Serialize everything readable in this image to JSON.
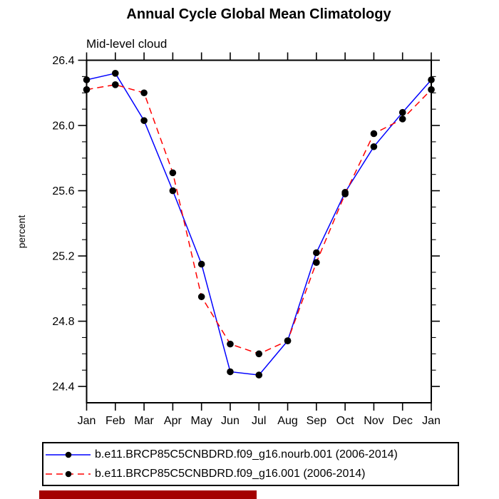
{
  "figure": {
    "title": "Annual Cycle Global Mean Climatology",
    "subtitle": "Mid-level cloud"
  },
  "chart_data": {
    "type": "line",
    "title": "Annual Cycle Global Mean Climatology",
    "subtitle": "Mid-level cloud",
    "xlabel": "",
    "ylabel": "percent",
    "categories": [
      "Jan",
      "Feb",
      "Mar",
      "Apr",
      "May",
      "Jun",
      "Jul",
      "Aug",
      "Sep",
      "Oct",
      "Nov",
      "Dec",
      "Jan"
    ],
    "ylim": [
      24.3,
      26.4
    ],
    "yticks_major": [
      26.4,
      26.0,
      25.6,
      25.2,
      24.8,
      24.4
    ],
    "ytick_labels": [
      "26.4",
      "26.0",
      "25.6",
      "25.2",
      "24.8",
      "24.4"
    ],
    "minor_tick_step": 0.1,
    "grid": false,
    "legend_position": "bottom",
    "marker": "filled-circle",
    "marker_color": "#000000",
    "series": [
      {
        "name": "b.e11.BRCP85C5CNBDRD.f09_g16.nourb.001 (2006-2014)",
        "color": "#0000ff",
        "style": "solid",
        "values": [
          26.28,
          26.32,
          26.03,
          25.6,
          25.15,
          24.49,
          24.47,
          24.68,
          25.22,
          25.59,
          25.87,
          26.08,
          26.28
        ]
      },
      {
        "name": "b.e11.BRCP85C5CNBDRD.f09_g16.001 (2006-2014)",
        "color": "#ff0000",
        "style": "dashed",
        "values": [
          26.22,
          26.25,
          26.2,
          25.71,
          24.95,
          24.66,
          24.6,
          24.68,
          25.16,
          25.58,
          25.95,
          26.04,
          26.22
        ]
      }
    ]
  },
  "bottom_bar": {
    "color": "#a40000"
  }
}
